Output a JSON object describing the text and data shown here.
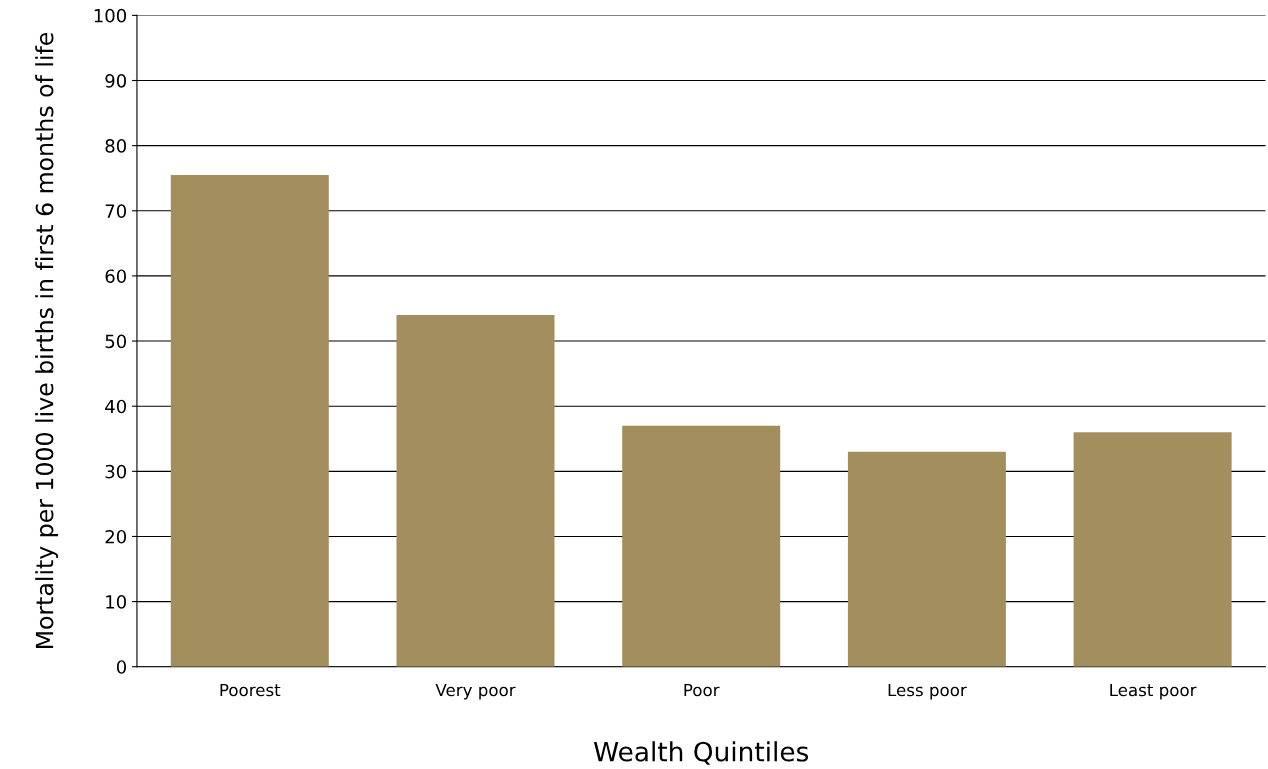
{
  "chart_data": {
    "type": "bar",
    "xlabel": "Wealth Quintiles",
    "ylabel": "Mortality per 1000 live births in first 6 months of life",
    "categories": [
      "Poorest",
      "Very poor",
      "Poor",
      "Less poor",
      "Least poor"
    ],
    "values": [
      75.5,
      54,
      37,
      33,
      36
    ],
    "color": "#a38f5e",
    "ylim": [
      0,
      100
    ],
    "yticks": [
      0,
      10,
      20,
      30,
      40,
      50,
      60,
      70,
      80,
      90,
      100
    ],
    "grid": "y"
  }
}
